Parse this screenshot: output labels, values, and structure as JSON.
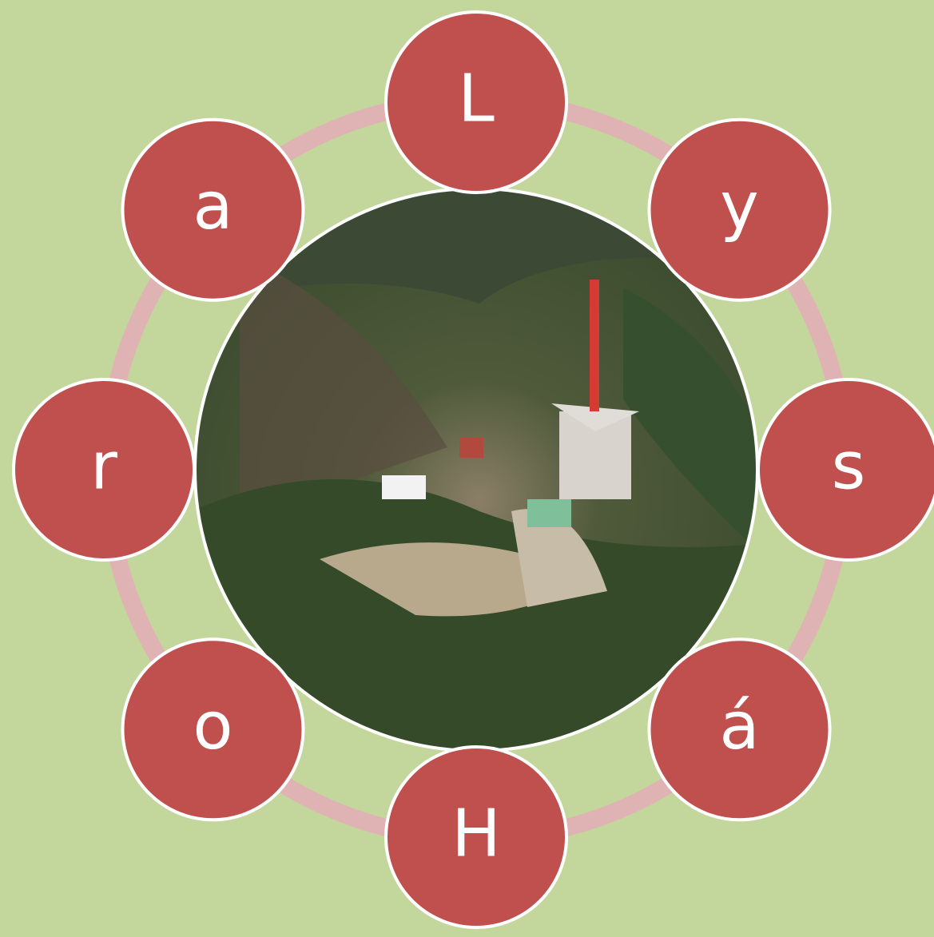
{
  "nodes": [
    {
      "label": "L"
    },
    {
      "label": "y"
    },
    {
      "label": "s"
    },
    {
      "label": "á"
    },
    {
      "label": "H"
    },
    {
      "label": "o"
    },
    {
      "label": "r"
    },
    {
      "label": "a"
    }
  ]
}
